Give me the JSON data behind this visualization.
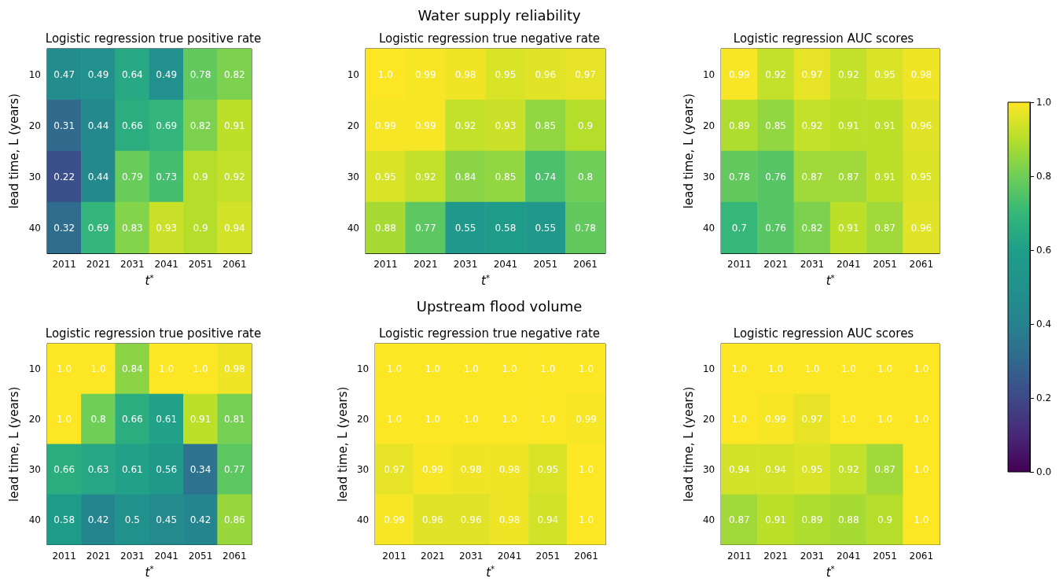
{
  "chart_data": [
    {
      "type": "heatmap",
      "title": "Logistic regression true positive rate",
      "xlabel": "t$^{*}$",
      "ylabel": "lead time, L (years)",
      "categories": [
        "2011",
        "2021",
        "2031",
        "2041",
        "2051",
        "2061"
      ],
      "y_categories": [
        "10",
        "20",
        "30",
        "40"
      ],
      "data_labels": true,
      "cells": [
        [
          0.47,
          0.49,
          0.64,
          0.49,
          0.78,
          0.82
        ],
        [
          0.31,
          0.44,
          0.66,
          0.69,
          0.82,
          0.91
        ],
        [
          0.22,
          0.44,
          0.79,
          0.73,
          0.9,
          0.92
        ],
        [
          0.32,
          0.69,
          0.83,
          0.93,
          0.9,
          0.94
        ]
      ]
    },
    {
      "type": "heatmap",
      "title": "Logistic regression true negative rate",
      "xlabel": "t$^{*}$",
      "annotations": [
        "Water supply reliability"
      ],
      "categories": [
        "2011",
        "2021",
        "2031",
        "2041",
        "2051",
        "2061"
      ],
      "y_categories": [
        "10",
        "20",
        "30",
        "40"
      ],
      "cells": [
        [
          1.0,
          0.99,
          0.98,
          0.95,
          0.96,
          0.97
        ],
        [
          0.99,
          0.99,
          0.92,
          0.93,
          0.85,
          0.9
        ],
        [
          0.95,
          0.92,
          0.84,
          0.85,
          0.74,
          0.8
        ],
        [
          0.88,
          0.77,
          0.55,
          0.58,
          0.55,
          0.78
        ]
      ],
      "cell_labels": [
        [
          "1.0",
          "0.99",
          "0.98",
          "0.95",
          "0.96",
          "0.97"
        ],
        [
          "0.99",
          "0.99",
          "0.92",
          "0.93",
          "0.85",
          "0.9"
        ],
        [
          "0.95",
          "0.92",
          "0.84",
          "0.85",
          "0.74",
          "0.8"
        ],
        [
          "0.88",
          "0.77",
          "0.55",
          "0.58",
          "0.55",
          "0.78"
        ]
      ]
    },
    {
      "type": "heatmap",
      "title": "Logistic regression AUC scores",
      "xlabel": "t$^{*}$",
      "ylabel": "lead time, L (years)",
      "categories": [
        "2011",
        "2021",
        "2031",
        "2041",
        "2051",
        "2061"
      ],
      "y_categories": [
        "10",
        "20",
        "30",
        "40"
      ],
      "clim": [
        0,
        1
      ],
      "data_labels": true,
      "cticks": [
        {
          "value": 0,
          "label": "0.0"
        },
        {
          "value": 0.2,
          "label": "0.2"
        },
        {
          "value": 0.4,
          "label": "0.4"
        },
        {
          "value": 0.6,
          "label": "0.6"
        },
        {
          "value": 0.8,
          "label": "0.8"
        },
        {
          "value": 1,
          "label": "1.0"
        }
      ],
      "cells": [
        [
          0.99,
          0.92,
          0.97,
          0.92,
          0.95,
          0.98
        ],
        [
          0.89,
          0.85,
          0.92,
          0.91,
          0.91,
          0.96
        ],
        [
          0.78,
          0.76,
          0.87,
          0.87,
          0.91,
          0.95
        ],
        [
          0.7,
          0.76,
          0.82,
          0.91,
          0.87,
          0.96
        ]
      ]
    },
    {
      "type": "heatmap",
      "title": "Logistic regression true positive rate",
      "xlabel": "t$^{*}$",
      "ylabel": "lead time, L (years)",
      "categories": [
        "2011",
        "2021",
        "2031",
        "2041",
        "2051",
        "2061"
      ],
      "y_categories": [
        "10",
        "20",
        "30",
        "40"
      ],
      "cells": [
        [
          1.0,
          1.0,
          0.84,
          1.0,
          1.0,
          0.98
        ],
        [
          1.0,
          0.8,
          0.66,
          0.61,
          0.91,
          0.81
        ],
        [
          0.66,
          0.63,
          0.61,
          0.56,
          0.34,
          0.77
        ],
        [
          0.58,
          0.42,
          0.5,
          0.45,
          0.42,
          0.86
        ]
      ],
      "cell_labels": [
        [
          "1.0",
          "1.0",
          "0.84",
          "1.0",
          "1.0",
          "0.98"
        ],
        [
          "1.0",
          "0.8",
          "0.66",
          "0.61",
          "0.91",
          "0.81"
        ],
        [
          "0.66",
          "0.63",
          "0.61",
          "0.56",
          "0.34",
          "0.77"
        ],
        [
          "0.58",
          "0.42",
          "0.5",
          "0.45",
          "0.42",
          "0.86"
        ]
      ]
    },
    {
      "type": "heatmap",
      "title": "Logistic regression true negative rate",
      "xlabel": "t$^{*}$",
      "ylabel": "lead time, L (years)",
      "annotations": [
        "Upstream flood volume"
      ],
      "categories": [
        "2011",
        "2021",
        "2031",
        "2041",
        "2051",
        "2061"
      ],
      "y_categories": [
        "10",
        "20",
        "30",
        "40"
      ],
      "cells": [
        [
          1.0,
          1.0,
          1.0,
          1.0,
          1.0,
          1.0
        ],
        [
          1.0,
          1.0,
          1.0,
          1.0,
          1.0,
          0.99
        ],
        [
          0.97,
          0.99,
          0.98,
          0.98,
          0.95,
          1.0
        ],
        [
          0.99,
          0.96,
          0.96,
          0.98,
          0.94,
          1.0
        ]
      ],
      "cell_labels": [
        [
          "1.0",
          "1.0",
          "1.0",
          "1.0",
          "1.0",
          "1.0"
        ],
        [
          "1.0",
          "1.0",
          "1.0",
          "1.0",
          "1.0",
          "0.99"
        ],
        [
          "0.97",
          "0.99",
          "0.98",
          "0.98",
          "0.95",
          "1.0"
        ],
        [
          "0.99",
          "0.96",
          "0.96",
          "0.98",
          "0.94",
          "1.0"
        ]
      ]
    },
    {
      "type": "heatmap",
      "title": "Logistic regression AUC scores",
      "xlabel": "t$^{*}$",
      "ylabel": "lead time, L (years)",
      "categories": [
        "2011",
        "2021",
        "2031",
        "2041",
        "2051",
        "2061"
      ],
      "y_categories": [
        "10",
        "20",
        "30",
        "40"
      ],
      "cells": [
        [
          1.0,
          1.0,
          1.0,
          1.0,
          1.0,
          1.0
        ],
        [
          1.0,
          0.99,
          0.97,
          1.0,
          1.0,
          1.0
        ],
        [
          0.94,
          0.94,
          0.95,
          0.92,
          0.87,
          1.0
        ],
        [
          0.87,
          0.91,
          0.89,
          0.88,
          0.9,
          1.0
        ]
      ],
      "cell_labels": [
        [
          "1.0",
          "1.0",
          "1.0",
          "1.0",
          "1.0",
          "1.0"
        ],
        [
          "1.0",
          "0.99",
          "0.97",
          "1.0",
          "1.0",
          "1.0"
        ],
        [
          "0.94",
          "0.94",
          "0.95",
          "0.92",
          "0.87",
          "1.0"
        ],
        [
          "0.87",
          "0.91",
          "0.89",
          "0.88",
          "0.9",
          "1.0"
        ]
      ]
    }
  ]
}
